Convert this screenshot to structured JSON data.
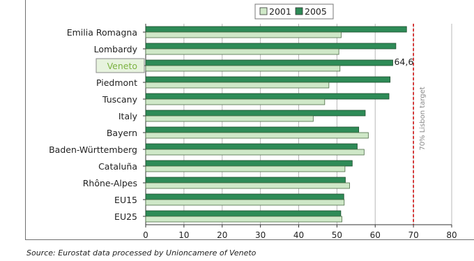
{
  "chart_data": {
    "type": "bar",
    "orientation": "horizontal",
    "categories": [
      "Emilia Romagna",
      "Lombardy",
      "Veneto",
      "Piedmont",
      "Tuscany",
      "Italy",
      "Bayern",
      "Baden-Württemberg",
      "Cataluña",
      "Rhône-Alpes",
      "EU15",
      "EU25"
    ],
    "series": [
      {
        "name": "2005",
        "color": "#2e8b57",
        "values": [
          68.2,
          65.4,
          64.6,
          63.9,
          63.6,
          57.4,
          55.7,
          55.3,
          54.0,
          52.2,
          51.8,
          51.0
        ]
      },
      {
        "name": "2001",
        "color": "#cfe8c8",
        "values": [
          51.1,
          50.5,
          50.8,
          47.9,
          46.8,
          43.8,
          58.2,
          57.1,
          52.1,
          53.3,
          51.9,
          51.3
        ]
      }
    ],
    "xlim": [
      0,
      80
    ],
    "xticks": [
      "0",
      "10",
      "20",
      "30",
      "40",
      "50",
      "60",
      "70",
      "80"
    ],
    "grid": true,
    "legend_position": "top-center",
    "highlight_category": "Veneto",
    "highlight_color": "#7cb342",
    "data_label": {
      "category": "Veneto",
      "series": "2005",
      "text": "64,6"
    },
    "target_line": {
      "value": 70,
      "label": "70% Lisbon target",
      "color": "#cc0000"
    },
    "source": "Source: Eurostat data processed by Unioncamere of Veneto"
  }
}
